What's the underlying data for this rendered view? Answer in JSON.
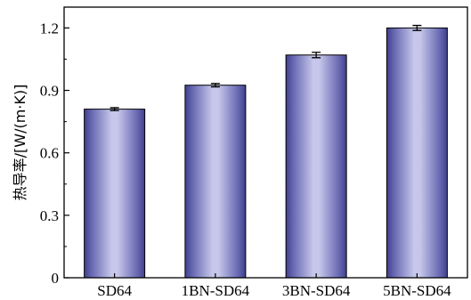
{
  "chart_data": {
    "type": "bar",
    "title": "",
    "xlabel": "",
    "ylabel": "热导率/[W/(m·K)]",
    "categories": [
      "SD64",
      "1BN-SD64",
      "3BN-SD64",
      "5BN-SD64"
    ],
    "series": [
      {
        "values": [
          0.81,
          0.925,
          1.07,
          1.2
        ],
        "error": [
          0.007,
          0.008,
          0.013,
          0.012
        ]
      }
    ],
    "ylim": [
      0,
      1.3
    ],
    "yticks": [
      0,
      0.3,
      0.6,
      0.9,
      1.2
    ],
    "ytick_labels": [
      "0",
      "0.3",
      "0.6",
      "0.9",
      "1.2"
    ],
    "grid": false,
    "legend": "none",
    "bar_colors": {
      "edge": "#3f3f8c",
      "center": "#c6c7ea",
      "dark": "#5d5da8"
    }
  }
}
